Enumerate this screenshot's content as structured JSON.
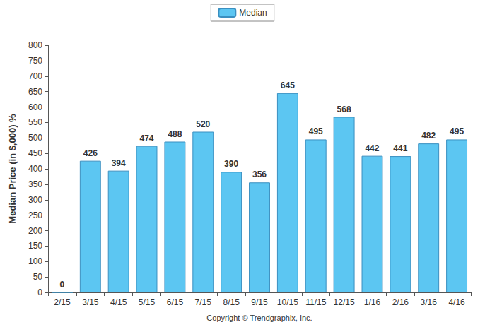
{
  "chart_data": {
    "type": "bar",
    "ylabel": "Median Price (in $,000) %",
    "xlabel": "Copyright © Trendgraphix, Inc.",
    "categories": [
      "2/15",
      "3/15",
      "4/15",
      "5/15",
      "6/15",
      "7/15",
      "8/15",
      "9/15",
      "10/15",
      "11/15",
      "12/15",
      "1/16",
      "2/16",
      "3/16",
      "4/16"
    ],
    "series": [
      {
        "name": "Median",
        "color": "#5cc6f2",
        "values": [
          0,
          426,
          394,
          474,
          488,
          520,
          390,
          356,
          645,
          495,
          568,
          442,
          441,
          482,
          495
        ]
      }
    ],
    "ylim": [
      0,
      800
    ],
    "yticks": [
      0,
      50,
      100,
      150,
      200,
      250,
      300,
      350,
      400,
      450,
      500,
      550,
      600,
      650,
      700,
      750,
      800
    ],
    "grid": false,
    "legend": "top",
    "data_labels": true
  }
}
